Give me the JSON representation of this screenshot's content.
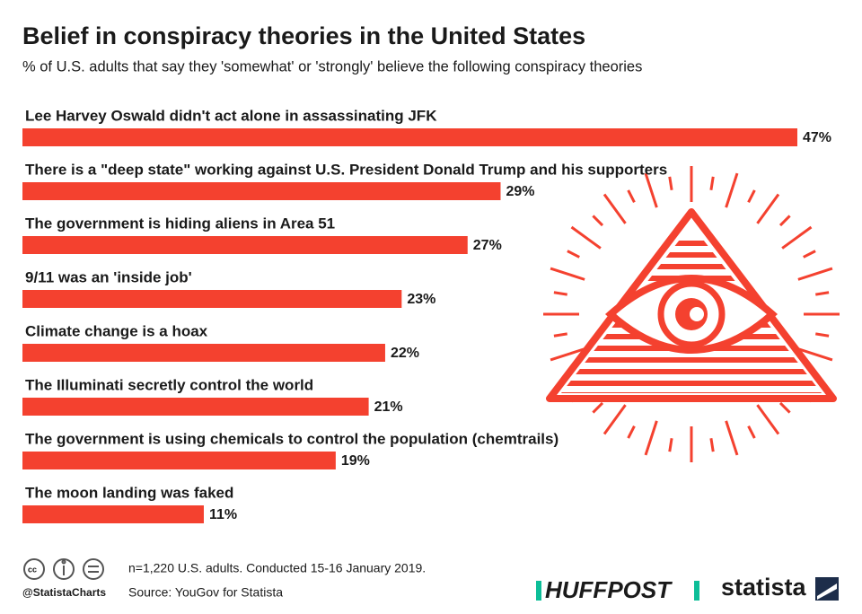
{
  "chart_data": {
    "type": "bar",
    "orientation": "horizontal",
    "title": "Belief in conspiracy theories in the United States",
    "subtitle": "% of U.S. adults that say they 'somewhat' or 'strongly' believe the following conspiracy theories",
    "categories": [
      "Lee Harvey Oswald didn't act alone in assassinating JFK",
      "There is a \"deep state\" working against U.S. President Donald Trump and his supporters",
      "The government is hiding aliens in Area 51",
      "9/11 was an 'inside job'",
      "Climate change is a hoax",
      "The Illuminati secretly control the world",
      "The government is using chemicals to control the population (chemtrails)",
      "The moon landing was faked"
    ],
    "values": [
      47,
      29,
      27,
      23,
      22,
      21,
      19,
      11
    ],
    "value_labels": [
      "47%",
      "29%",
      "27%",
      "23%",
      "22%",
      "21%",
      "19%",
      "11%"
    ],
    "color": "#f4412f",
    "note": "n=1,220 U.S. adults. Conducted 15-16 January 2019.",
    "source": "Source: YouGov for Statista",
    "credit": "@StatistaCharts",
    "logos": [
      "HUFFPOST",
      "statista"
    ]
  }
}
